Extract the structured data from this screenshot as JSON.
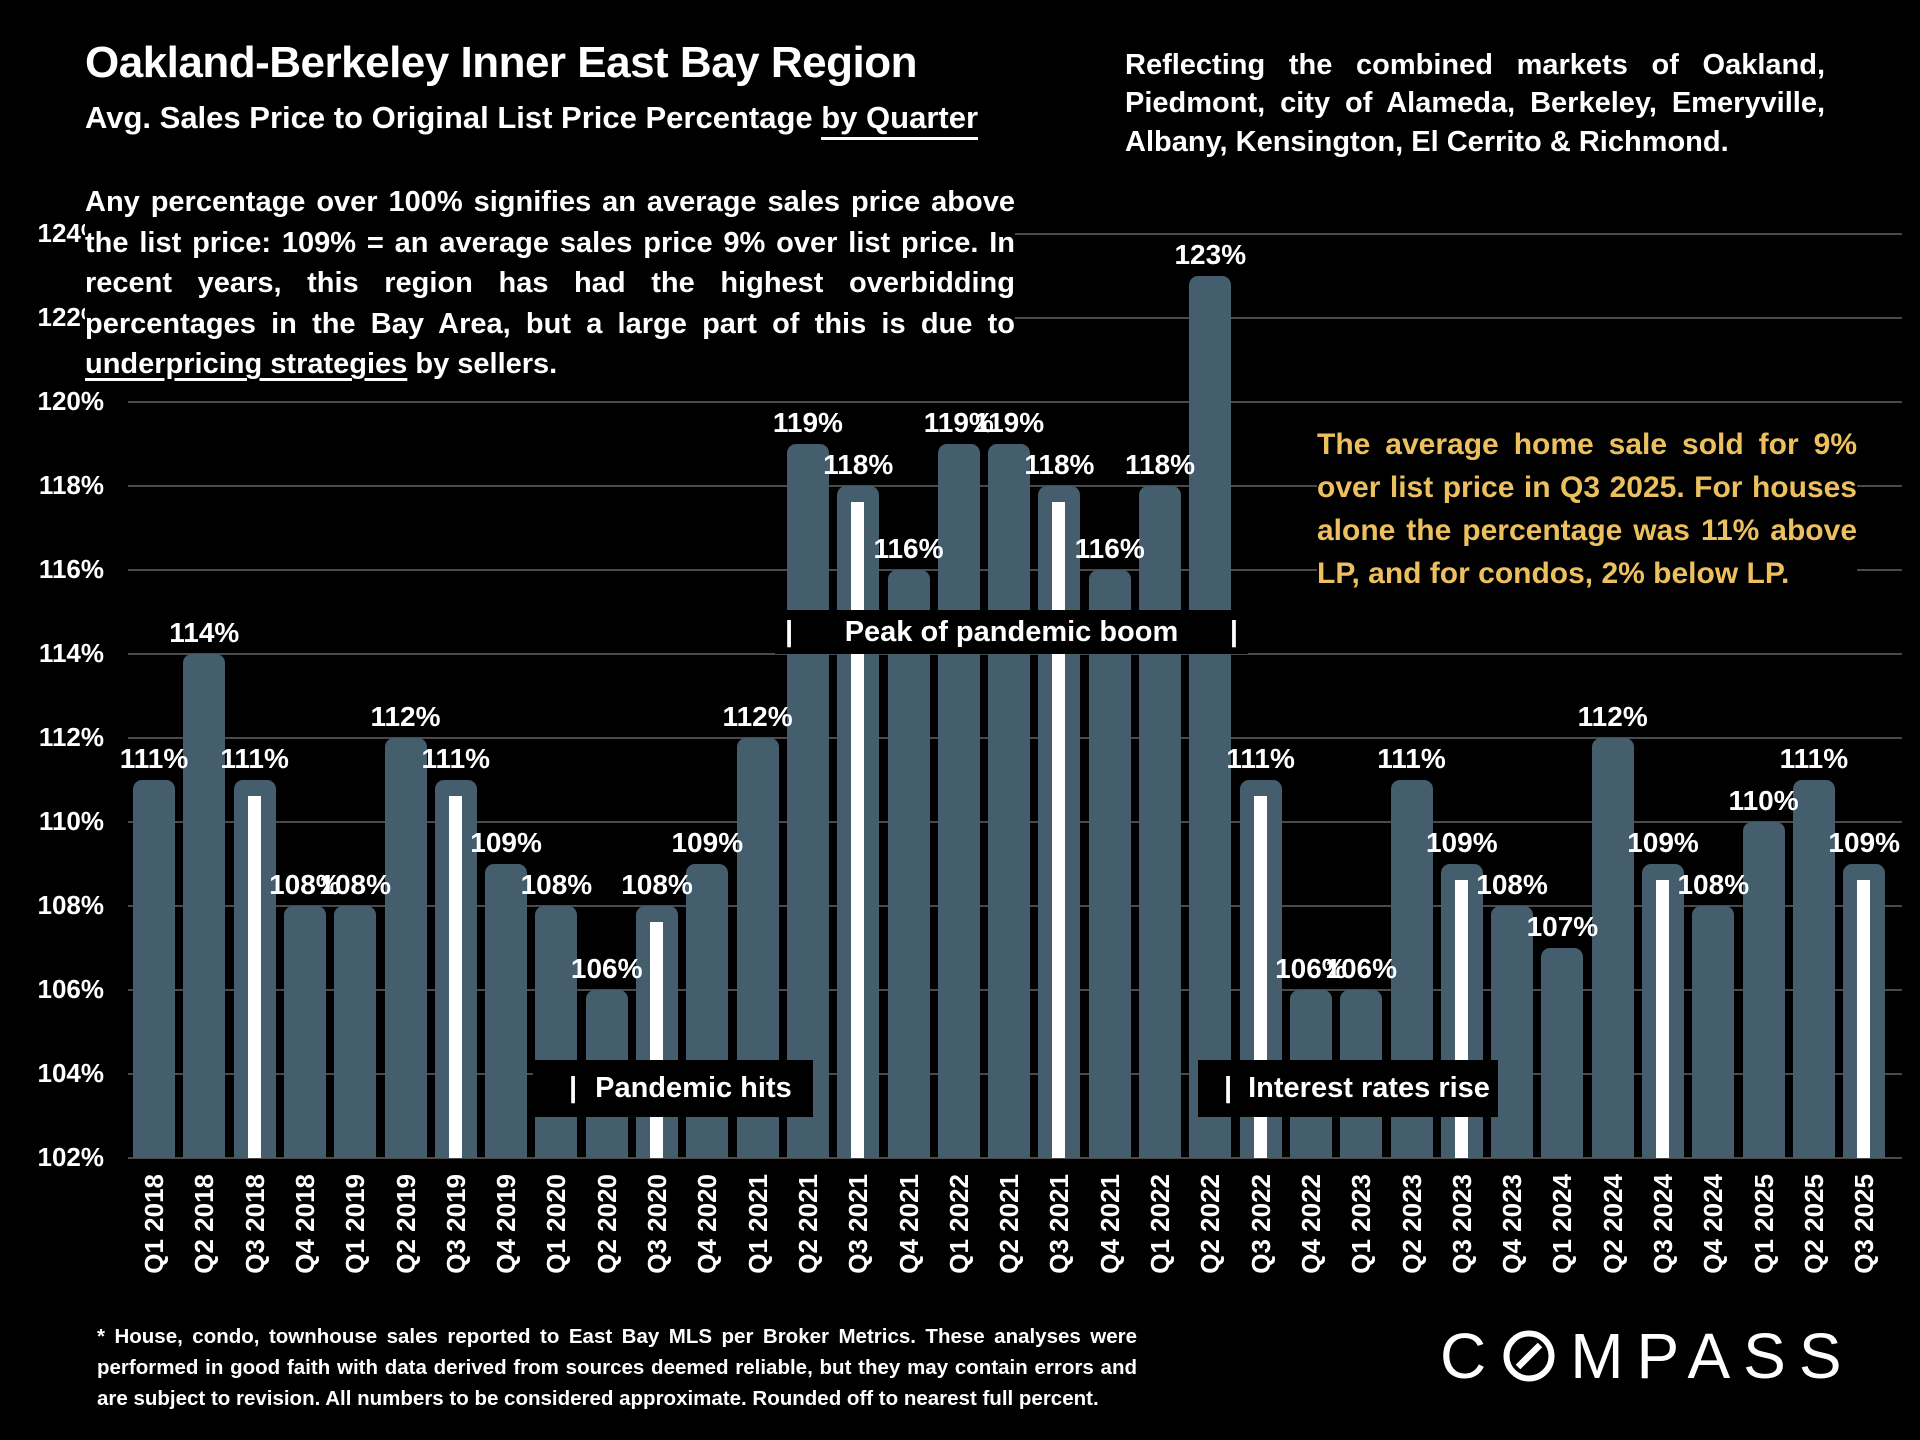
{
  "header": {
    "title": "Oakland-Berkeley Inner East Bay Region",
    "subtitle": "Avg. Sales Price to Original List Price Percentage ",
    "subtitle_underlined": "by Quarter",
    "region_note": "Reflecting the combined markets of Oakland, Piedmont, city of Alameda, Berkeley, Emeryville, Albany, Kensington, El Cerrito & Richmond."
  },
  "intro": {
    "before": "Any percentage over 100% signifies an average sales price above the list price: 109% = an average sales price 9% over list price. In recent years, this region has had the highest overbidding percentages in the Bay Area, but a large part of this is due to ",
    "underlined": "underpricing strategies",
    "after": " by sellers."
  },
  "callout": {
    "text": "The average home sale sold for 9% over list price in Q3 2025. For houses alone the percentage was 11% above LP, and for condos, 2% below LP.",
    "color": "#ecc05e"
  },
  "annotations": {
    "pipe": "|",
    "peak_label": "Peak of pandemic boom",
    "pandemic_label": "Pandemic hits",
    "rates_label": "Interest rates rise"
  },
  "chart_data": {
    "type": "bar",
    "title": "Avg. Sales Price to Original List Price Percentage by Quarter — Oakland-Berkeley Inner East Bay Region",
    "categories": [
      "Q1 2018",
      "Q2 2018",
      "Q3 2018",
      "Q4 2018",
      "Q1 2019",
      "Q2 2019",
      "Q3 2019",
      "Q4 2019",
      "Q1 2020",
      "Q2 2020",
      "Q3 2020",
      "Q4 2020",
      "Q1 2021",
      "Q2 2021",
      "Q3 2021",
      "Q4 2021",
      "Q1 2022",
      "Q2 2021",
      "Q3 2021",
      "Q4 2021",
      "Q1 2022",
      "Q2 2022",
      "Q3 2022",
      "Q4 2022",
      "Q1 2023",
      "Q2 2023",
      "Q3 2023",
      "Q4 2023",
      "Q1 2024",
      "Q2 2024",
      "Q3 2024",
      "Q4 2024",
      "Q1 2025",
      "Q2 2025",
      "Q3 2025"
    ],
    "values": [
      111,
      114,
      111,
      108,
      108,
      112,
      111,
      109,
      108,
      106,
      108,
      109,
      112,
      119,
      118,
      116,
      119,
      119,
      118,
      116,
      118,
      123,
      111,
      106,
      106,
      111,
      109,
      108,
      107,
      112,
      109,
      108,
      110,
      111,
      109
    ],
    "unit": "%",
    "y_ticks": [
      124,
      122,
      120,
      118,
      116,
      114,
      112,
      110,
      108,
      106,
      104,
      102
    ],
    "ylim": [
      102,
      124
    ],
    "grid": true,
    "legend": "none",
    "bar_color": "#445e6e",
    "q3_stripe_color": "#ffffff",
    "q3_stripe_indices": [
      2,
      6,
      10,
      14,
      18,
      22,
      26,
      30,
      34
    ],
    "value_labels_shown": true,
    "xlabel": "",
    "ylabel": ""
  },
  "footer": {
    "disclaimer": "* House, condo, townhouse sales reported to East Bay MLS per Broker Metrics. These analyses were performed in good faith with data derived from sources deemed reliable, but they may contain errors and are subject to revision. All numbers to be considered approximate. Rounded off to nearest full percent."
  },
  "logo": {
    "brand": "COMPASS"
  }
}
